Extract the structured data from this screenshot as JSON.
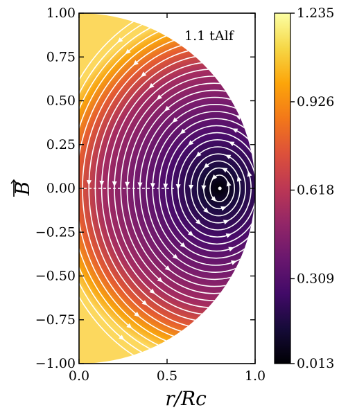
{
  "chart_data": {
    "type": "heatmap",
    "annotation": "1.1 tAlf",
    "xlabel": "r/Rc",
    "ylabel": "B",
    "xlim": [
      0.0,
      1.0
    ],
    "ylim": [
      -1.0,
      1.0
    ],
    "x_ticks": [
      0.0,
      0.5,
      1.0
    ],
    "x_tick_labels": [
      "0.0",
      "0.5",
      "1.0"
    ],
    "y_ticks": [
      1.0,
      0.75,
      0.5,
      0.25,
      0.0,
      -0.25,
      -0.5,
      -0.75,
      -1.0
    ],
    "y_tick_labels": [
      "1.00",
      "0.75",
      "0.50",
      "0.25",
      "0.00",
      "−0.25",
      "−0.50",
      "−0.75",
      "−1.00"
    ],
    "colormap": "inferno",
    "colorbar": {
      "min": 0.013,
      "max": 1.235,
      "ticks": [
        1.235,
        0.926,
        0.618,
        0.309,
        0.013
      ],
      "tick_labels": [
        "1.235",
        "0.926",
        "0.618",
        "0.309",
        "0.013"
      ]
    },
    "domain": "half-disk, radius 1",
    "vortex_center": [
      0.8,
      0.0
    ],
    "field_value_axis": 1.2,
    "field_value_vortex_center": 0.013,
    "streamline_color": "#ffffff"
  }
}
